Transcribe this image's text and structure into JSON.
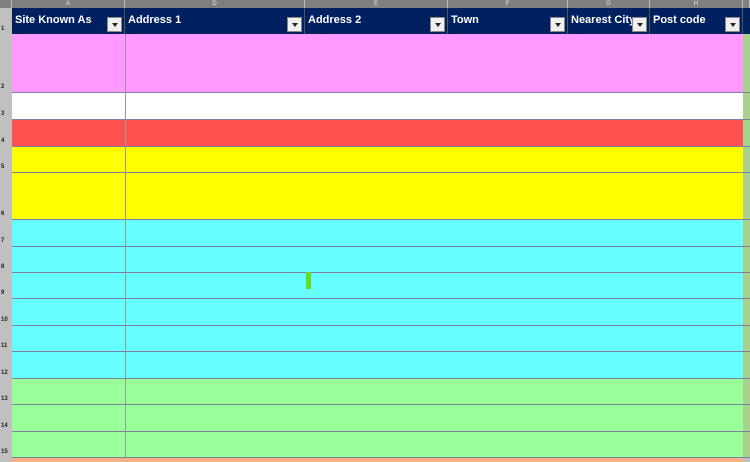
{
  "column_letters": [
    "A",
    "D",
    "E",
    "F",
    "G",
    "H"
  ],
  "header": {
    "row_number": "1",
    "cells": [
      "Site Known As",
      "Address 1",
      "Address 2",
      "Town",
      "Nearest City",
      "Post code"
    ]
  },
  "rows": [
    {
      "number": "2",
      "color": "#ff99ff"
    },
    {
      "number": "3",
      "color": "#ffffff"
    },
    {
      "number": "4",
      "color": "#ff5050"
    },
    {
      "number": "5",
      "color": "#ffff00"
    },
    {
      "number": "6",
      "color": "#ffff00"
    },
    {
      "number": "7",
      "color": "#66ffff"
    },
    {
      "number": "8",
      "color": "#66ffff"
    },
    {
      "number": "9",
      "color": "#66ffff"
    },
    {
      "number": "10",
      "color": "#66ffff"
    },
    {
      "number": "11",
      "color": "#66ffff"
    },
    {
      "number": "12",
      "color": "#66ffff"
    },
    {
      "number": "13",
      "color": "#99ff99"
    },
    {
      "number": "14",
      "color": "#99ff99"
    },
    {
      "number": "15",
      "color": "#99ff99"
    }
  ]
}
